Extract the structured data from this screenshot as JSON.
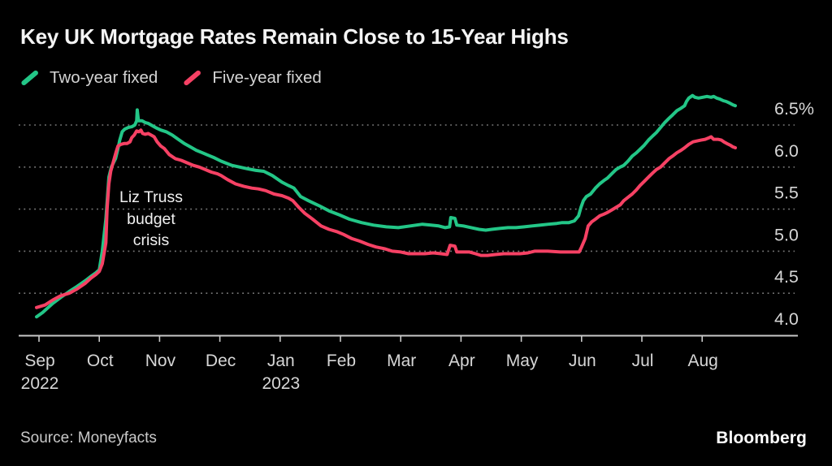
{
  "header": {
    "title": "Key UK Mortgage Rates Remain Close to 15-Year Highs"
  },
  "legend": {
    "items": [
      {
        "label": "Two-year fixed",
        "color": "#23c687"
      },
      {
        "label": "Five-year fixed",
        "color": "#f64164"
      }
    ]
  },
  "footer": {
    "source": "Source: Moneyfacts",
    "brand": "Bloomberg"
  },
  "colors": {
    "background": "#000000",
    "grid_dots": "#7a7a7a",
    "axis_line": "#c8c8c8",
    "tick_text": "#d6d6d6",
    "title_text": "#f4f4f4",
    "annotation_text": "#f1f1f1"
  },
  "chart_data": {
    "type": "line",
    "title": "Key UK Mortgage Rates Remain Close to 15-Year Highs",
    "grid": "dashed horizontal gridlines, solid baseline at 4.0",
    "legend_position": "top-left",
    "x_axis": {
      "unit": "months since 1 Sep 2022",
      "tick_labels": [
        "Sep",
        "Oct",
        "Nov",
        "Dec",
        "Jan",
        "Feb",
        "Mar",
        "Apr",
        "May",
        "Jun",
        "Jul",
        "Aug"
      ],
      "tick_months": [
        0,
        1,
        2,
        3,
        4,
        5,
        6,
        7,
        8,
        9,
        10,
        11
      ],
      "year_labels": [
        {
          "text": "2022",
          "month_index": 0
        },
        {
          "text": "2023",
          "month_index": 4
        }
      ]
    },
    "y_axis": {
      "unit": "percent",
      "tick_labels": [
        "6.5%",
        "6.0",
        "5.5",
        "5.0",
        "4.5",
        "4.0"
      ],
      "tick_values": [
        6.5,
        6.0,
        5.5,
        5.0,
        4.5,
        4.0
      ],
      "range": [
        4.0,
        6.9
      ]
    },
    "annotation": {
      "lines": [
        "Liz Truss",
        "budget",
        "crisis"
      ],
      "anchor_month": 1.9,
      "anchor_value": 5.2
    },
    "series": [
      {
        "name": "Two-year fixed",
        "color": "#23c687",
        "points": [
          [
            0,
            4.22
          ],
          [
            0.1,
            4.27
          ],
          [
            0.27,
            4.38
          ],
          [
            0.4,
            4.45
          ],
          [
            0.54,
            4.52
          ],
          [
            0.67,
            4.58
          ],
          [
            0.81,
            4.65
          ],
          [
            0.9,
            4.7
          ],
          [
            0.98,
            4.74
          ],
          [
            1.04,
            4.78
          ],
          [
            1.09,
            5.0
          ],
          [
            1.15,
            5.38
          ],
          [
            1.2,
            5.88
          ],
          [
            1.24,
            6.0
          ],
          [
            1.31,
            6.1
          ],
          [
            1.35,
            6.22
          ],
          [
            1.38,
            6.32
          ],
          [
            1.42,
            6.42
          ],
          [
            1.46,
            6.45
          ],
          [
            1.52,
            6.47
          ],
          [
            1.58,
            6.48
          ],
          [
            1.63,
            6.5
          ],
          [
            1.66,
            6.55
          ],
          [
            1.67,
            6.68
          ],
          [
            1.69,
            6.55
          ],
          [
            1.75,
            6.55
          ],
          [
            1.8,
            6.53
          ],
          [
            1.85,
            6.52
          ],
          [
            1.9,
            6.5
          ],
          [
            1.95,
            6.48
          ],
          [
            2.0,
            6.46
          ],
          [
            2.06,
            6.44
          ],
          [
            2.15,
            6.42
          ],
          [
            2.25,
            6.38
          ],
          [
            2.35,
            6.33
          ],
          [
            2.45,
            6.28
          ],
          [
            2.55,
            6.24
          ],
          [
            2.65,
            6.2
          ],
          [
            2.75,
            6.17
          ],
          [
            2.85,
            6.14
          ],
          [
            2.95,
            6.11
          ],
          [
            3.06,
            6.07
          ],
          [
            3.24,
            6.02
          ],
          [
            3.37,
            6.0
          ],
          [
            3.5,
            5.98
          ],
          [
            3.64,
            5.96
          ],
          [
            3.77,
            5.95
          ],
          [
            3.91,
            5.9
          ],
          [
            4.07,
            5.82
          ],
          [
            4.18,
            5.78
          ],
          [
            4.27,
            5.75
          ],
          [
            4.38,
            5.65
          ],
          [
            4.51,
            5.6
          ],
          [
            4.69,
            5.54
          ],
          [
            4.85,
            5.48
          ],
          [
            5.03,
            5.43
          ],
          [
            5.19,
            5.38
          ],
          [
            5.39,
            5.34
          ],
          [
            5.59,
            5.31
          ],
          [
            5.8,
            5.29
          ],
          [
            6.0,
            5.28
          ],
          [
            6.2,
            5.3
          ],
          [
            6.4,
            5.32
          ],
          [
            6.54,
            5.31
          ],
          [
            6.67,
            5.3
          ],
          [
            6.78,
            5.28
          ],
          [
            6.85,
            5.29
          ],
          [
            6.87,
            5.4
          ],
          [
            6.94,
            5.39
          ],
          [
            6.97,
            5.31
          ],
          [
            7.08,
            5.3
          ],
          [
            7.21,
            5.28
          ],
          [
            7.34,
            5.26
          ],
          [
            7.45,
            5.25
          ],
          [
            7.55,
            5.26
          ],
          [
            7.68,
            5.27
          ],
          [
            7.82,
            5.28
          ],
          [
            7.95,
            5.28
          ],
          [
            8.09,
            5.29
          ],
          [
            8.22,
            5.3
          ],
          [
            8.36,
            5.31
          ],
          [
            8.49,
            5.32
          ],
          [
            8.63,
            5.33
          ],
          [
            8.72,
            5.34
          ],
          [
            8.83,
            5.34
          ],
          [
            8.92,
            5.36
          ],
          [
            8.99,
            5.42
          ],
          [
            9.03,
            5.52
          ],
          [
            9.07,
            5.6
          ],
          [
            9.12,
            5.65
          ],
          [
            9.19,
            5.68
          ],
          [
            9.27,
            5.75
          ],
          [
            9.34,
            5.8
          ],
          [
            9.41,
            5.84
          ],
          [
            9.47,
            5.87
          ],
          [
            9.54,
            5.92
          ],
          [
            9.61,
            5.97
          ],
          [
            9.68,
            6.0
          ],
          [
            9.74,
            6.02
          ],
          [
            9.81,
            6.07
          ],
          [
            9.88,
            6.13
          ],
          [
            9.95,
            6.17
          ],
          [
            10.01,
            6.21
          ],
          [
            10.08,
            6.26
          ],
          [
            10.15,
            6.32
          ],
          [
            10.22,
            6.37
          ],
          [
            10.28,
            6.41
          ],
          [
            10.35,
            6.47
          ],
          [
            10.42,
            6.53
          ],
          [
            10.49,
            6.58
          ],
          [
            10.55,
            6.62
          ],
          [
            10.62,
            6.67
          ],
          [
            10.69,
            6.7
          ],
          [
            10.75,
            6.73
          ],
          [
            10.78,
            6.78
          ],
          [
            10.82,
            6.82
          ],
          [
            10.88,
            6.85
          ],
          [
            10.92,
            6.83
          ],
          [
            10.98,
            6.82
          ],
          [
            11.05,
            6.83
          ],
          [
            11.12,
            6.84
          ],
          [
            11.19,
            6.83
          ],
          [
            11.23,
            6.84
          ],
          [
            11.28,
            6.82
          ],
          [
            11.33,
            6.81
          ],
          [
            11.39,
            6.79
          ],
          [
            11.44,
            6.78
          ],
          [
            11.5,
            6.76
          ],
          [
            11.55,
            6.74
          ],
          [
            11.59,
            6.73
          ]
        ]
      },
      {
        "name": "Five-year fixed",
        "color": "#f64164",
        "points": [
          [
            0,
            4.33
          ],
          [
            0.14,
            4.36
          ],
          [
            0.27,
            4.42
          ],
          [
            0.4,
            4.47
          ],
          [
            0.54,
            4.5
          ],
          [
            0.67,
            4.55
          ],
          [
            0.81,
            4.62
          ],
          [
            0.9,
            4.68
          ],
          [
            0.98,
            4.72
          ],
          [
            1.04,
            4.76
          ],
          [
            1.09,
            4.85
          ],
          [
            1.15,
            5.1
          ],
          [
            1.17,
            5.5
          ],
          [
            1.2,
            5.8
          ],
          [
            1.23,
            5.95
          ],
          [
            1.28,
            6.08
          ],
          [
            1.32,
            6.18
          ],
          [
            1.35,
            6.25
          ],
          [
            1.4,
            6.27
          ],
          [
            1.45,
            6.28
          ],
          [
            1.5,
            6.28
          ],
          [
            1.55,
            6.3
          ],
          [
            1.58,
            6.35
          ],
          [
            1.62,
            6.38
          ],
          [
            1.66,
            6.43
          ],
          [
            1.7,
            6.42
          ],
          [
            1.73,
            6.44
          ],
          [
            1.76,
            6.4
          ],
          [
            1.8,
            6.39
          ],
          [
            1.85,
            6.4
          ],
          [
            1.9,
            6.38
          ],
          [
            1.95,
            6.36
          ],
          [
            2.0,
            6.3
          ],
          [
            2.06,
            6.25
          ],
          [
            2.12,
            6.22
          ],
          [
            2.2,
            6.15
          ],
          [
            2.3,
            6.1
          ],
          [
            2.4,
            6.08
          ],
          [
            2.5,
            6.05
          ],
          [
            2.6,
            6.02
          ],
          [
            2.7,
            6.0
          ],
          [
            2.8,
            5.97
          ],
          [
            2.9,
            5.94
          ],
          [
            3.0,
            5.92
          ],
          [
            3.06,
            5.9
          ],
          [
            3.17,
            5.85
          ],
          [
            3.3,
            5.8
          ],
          [
            3.44,
            5.77
          ],
          [
            3.57,
            5.75
          ],
          [
            3.68,
            5.74
          ],
          [
            3.8,
            5.72
          ],
          [
            3.94,
            5.68
          ],
          [
            4.07,
            5.66
          ],
          [
            4.18,
            5.63
          ],
          [
            4.25,
            5.6
          ],
          [
            4.35,
            5.52
          ],
          [
            4.45,
            5.45
          ],
          [
            4.58,
            5.38
          ],
          [
            4.72,
            5.3
          ],
          [
            4.85,
            5.26
          ],
          [
            4.99,
            5.23
          ],
          [
            5.09,
            5.2
          ],
          [
            5.23,
            5.15
          ],
          [
            5.36,
            5.12
          ],
          [
            5.5,
            5.08
          ],
          [
            5.63,
            5.05
          ],
          [
            5.77,
            5.03
          ],
          [
            5.9,
            5.0
          ],
          [
            6.04,
            4.99
          ],
          [
            6.17,
            4.97
          ],
          [
            6.31,
            4.97
          ],
          [
            6.44,
            4.97
          ],
          [
            6.58,
            4.98
          ],
          [
            6.71,
            4.97
          ],
          [
            6.81,
            4.96
          ],
          [
            6.86,
            5.07
          ],
          [
            6.94,
            5.06
          ],
          [
            6.97,
            4.99
          ],
          [
            7.08,
            4.99
          ],
          [
            7.18,
            4.99
          ],
          [
            7.28,
            4.97
          ],
          [
            7.37,
            4.95
          ],
          [
            7.48,
            4.95
          ],
          [
            7.61,
            4.96
          ],
          [
            7.75,
            4.97
          ],
          [
            7.88,
            4.97
          ],
          [
            8.02,
            4.97
          ],
          [
            8.15,
            4.98
          ],
          [
            8.26,
            5.0
          ],
          [
            8.48,
            5.0
          ],
          [
            8.69,
            4.99
          ],
          [
            8.91,
            4.99
          ],
          [
            9.0,
            4.99
          ],
          [
            9.04,
            5.05
          ],
          [
            9.1,
            5.15
          ],
          [
            9.15,
            5.3
          ],
          [
            9.21,
            5.35
          ],
          [
            9.27,
            5.38
          ],
          [
            9.34,
            5.42
          ],
          [
            9.41,
            5.44
          ],
          [
            9.47,
            5.46
          ],
          [
            9.54,
            5.49
          ],
          [
            9.61,
            5.52
          ],
          [
            9.68,
            5.55
          ],
          [
            9.74,
            5.6
          ],
          [
            9.81,
            5.64
          ],
          [
            9.88,
            5.68
          ],
          [
            9.95,
            5.73
          ],
          [
            10.01,
            5.78
          ],
          [
            10.08,
            5.83
          ],
          [
            10.15,
            5.88
          ],
          [
            10.22,
            5.93
          ],
          [
            10.28,
            5.97
          ],
          [
            10.35,
            6.0
          ],
          [
            10.42,
            6.05
          ],
          [
            10.49,
            6.1
          ],
          [
            10.55,
            6.13
          ],
          [
            10.62,
            6.17
          ],
          [
            10.69,
            6.2
          ],
          [
            10.75,
            6.23
          ],
          [
            10.82,
            6.27
          ],
          [
            10.89,
            6.3
          ],
          [
            10.95,
            6.31
          ],
          [
            11.02,
            6.32
          ],
          [
            11.09,
            6.33
          ],
          [
            11.16,
            6.35
          ],
          [
            11.19,
            6.36
          ],
          [
            11.23,
            6.33
          ],
          [
            11.3,
            6.33
          ],
          [
            11.36,
            6.32
          ],
          [
            11.4,
            6.3
          ],
          [
            11.45,
            6.28
          ],
          [
            11.51,
            6.26
          ],
          [
            11.55,
            6.24
          ],
          [
            11.59,
            6.23
          ]
        ]
      }
    ]
  }
}
